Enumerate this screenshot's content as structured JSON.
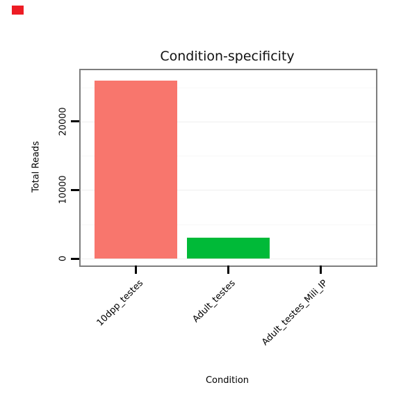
{
  "marker": {
    "color": "#ed1c24"
  },
  "chart_data": {
    "type": "bar",
    "title": "Condition-specificity",
    "xlabel": "Condition",
    "ylabel": "Total Reads",
    "categories": [
      "10dpp_testes",
      "Adult_testes",
      "Adult_testes_Mili_IP"
    ],
    "values": [
      26000,
      3000,
      0
    ],
    "colors": [
      "#F8766D",
      "#00BA38"
    ],
    "yticks": [
      0,
      10000,
      20000
    ],
    "ylim": [
      0,
      27500
    ],
    "grid": true,
    "legend": false
  }
}
